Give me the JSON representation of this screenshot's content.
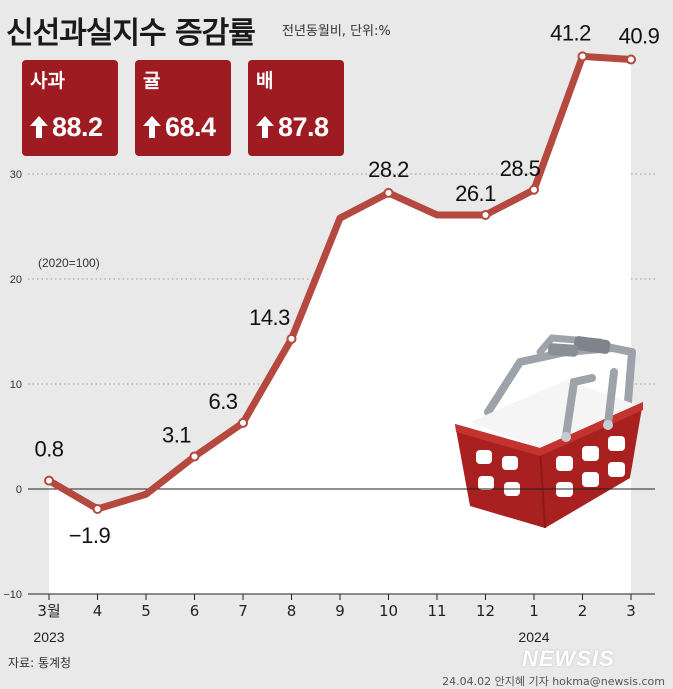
{
  "title": "신선과실지수 증감률",
  "subtitle": "전년동월비, 단위:%",
  "badges": [
    {
      "fruit": "사과",
      "value": "88.2"
    },
    {
      "fruit": "귤",
      "value": "68.4"
    },
    {
      "fruit": "배",
      "value": "87.8"
    }
  ],
  "base_note": "(2020=100)",
  "source": "자료: 통계청",
  "credit": "24.04.02 안지혜 기자 hokma@newsis.com",
  "logo": "NEWSIS",
  "colors": {
    "line": "#b5483f",
    "badge": "#9e1b22",
    "area": "#ffffff",
    "background": "#e9e9e9"
  },
  "chart_data": {
    "type": "line",
    "categories": [
      "3월",
      "4",
      "5",
      "6",
      "7",
      "8",
      "9",
      "10",
      "11",
      "12",
      "1",
      "2",
      "3"
    ],
    "year_labels": [
      {
        "index": 0,
        "label": "2023"
      },
      {
        "index": 10,
        "label": "2024"
      }
    ],
    "values": [
      0.8,
      -1.9,
      -0.5,
      3.1,
      6.3,
      14.3,
      25.8,
      28.2,
      26.1,
      26.1,
      28.5,
      41.2,
      40.9
    ],
    "data_labels": [
      {
        "index": 0,
        "text": "0.8"
      },
      {
        "index": 1,
        "text": "-1.9"
      },
      {
        "index": 3,
        "text": "3.1"
      },
      {
        "index": 4,
        "text": "6.3"
      },
      {
        "index": 5,
        "text": "14.3"
      },
      {
        "index": 7,
        "text": "28.2"
      },
      {
        "index": 9,
        "text": "26.1"
      },
      {
        "index": 10,
        "text": "28.5"
      },
      {
        "index": 11,
        "text": "41.2"
      },
      {
        "index": 12,
        "text": "40.9"
      }
    ],
    "yticks": [
      30,
      20,
      10,
      0,
      -10
    ],
    "ylim": [
      -10,
      42
    ],
    "grid": true,
    "markers": [
      0,
      1,
      3,
      4,
      5,
      7,
      9,
      10,
      11,
      12
    ]
  }
}
